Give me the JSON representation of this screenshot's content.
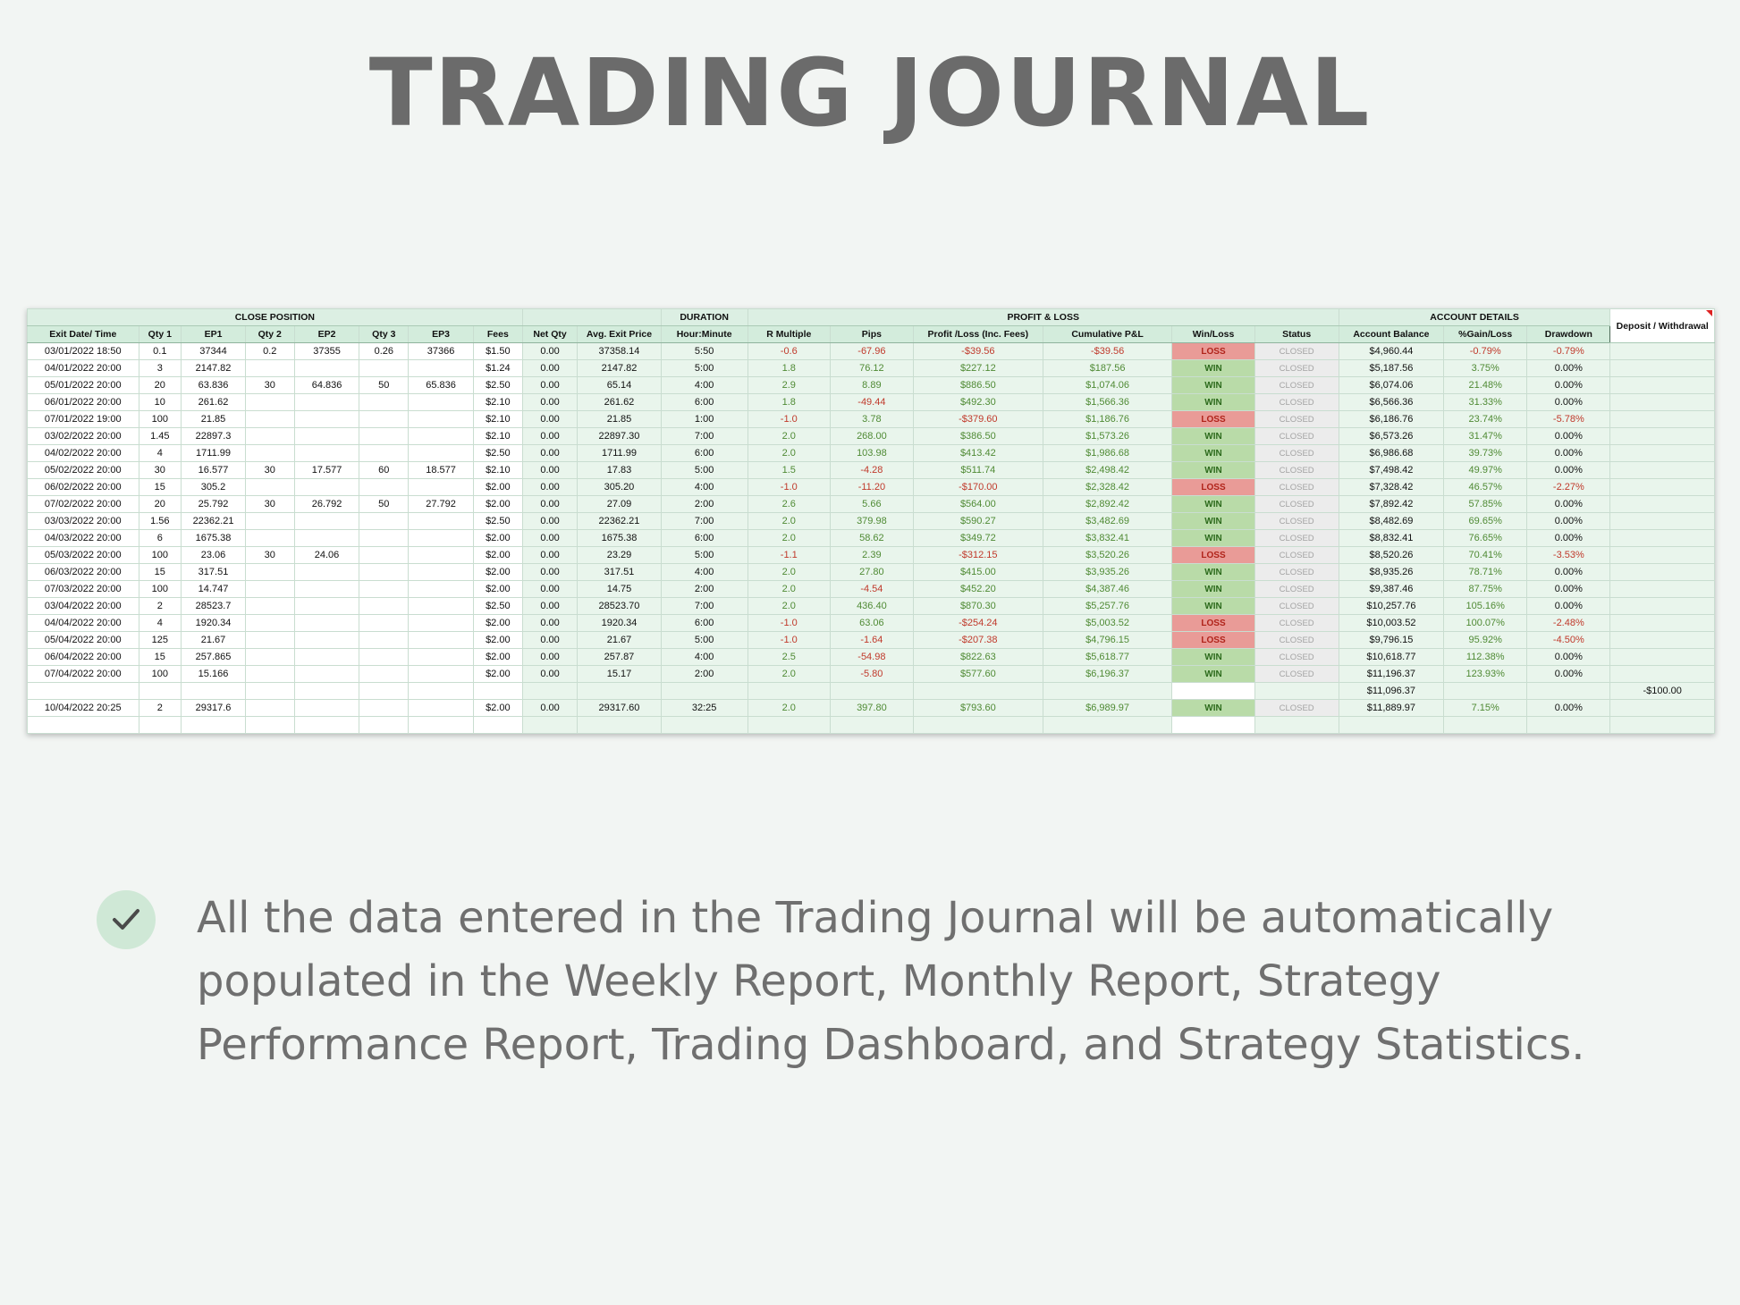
{
  "page": {
    "title": "TRADING JOURNAL",
    "note": "All the data entered in the Trading Journal will be automatically populated in the Weekly Report, Monthly Report, Strategy Performance Report, Trading Dashboard, and Strategy Statistics."
  },
  "colors": {
    "win": "#b9dba8",
    "loss": "#e99b97",
    "header": "#d3ecdc",
    "positive_text": "#4f8a34",
    "negative_text": "#c0392b"
  },
  "sheet": {
    "groups": {
      "close_position": "CLOSE POSITION",
      "duration": "DURATION",
      "profit_loss": "PROFIT & LOSS",
      "account_details": "ACCOUNT DETAILS"
    },
    "columns": [
      "Exit Date/ Time",
      "Qty 1",
      "EP1",
      "Qty 2",
      "EP2",
      "Qty 3",
      "EP3",
      "Fees",
      "Net Qty",
      "Avg. Exit Price",
      "Hour:Minute",
      "R Multiple",
      "Pips",
      "Profit /Loss (Inc. Fees)",
      "Cumulative P&L",
      "Win/Loss",
      "Status",
      "Account Balance",
      "%Gain/Loss",
      "Drawdown",
      "Deposit / Withdrawal"
    ],
    "rows": [
      [
        "03/01/2022 18:50",
        "0.1",
        "37344",
        "0.2",
        "37355",
        "0.26",
        "37366",
        "$1.50",
        "0.00",
        "37358.14",
        "5:50",
        "-0.6",
        "-67.96",
        "-$39.56",
        "-$39.56",
        "LOSS",
        "CLOSED",
        "$4,960.44",
        "-0.79%",
        "-0.79%",
        ""
      ],
      [
        "04/01/2022 20:00",
        "3",
        "2147.82",
        "",
        "",
        "",
        "",
        "$1.24",
        "0.00",
        "2147.82",
        "5:00",
        "1.8",
        "76.12",
        "$227.12",
        "$187.56",
        "WIN",
        "CLOSED",
        "$5,187.56",
        "3.75%",
        "0.00%",
        ""
      ],
      [
        "05/01/2022 20:00",
        "20",
        "63.836",
        "30",
        "64.836",
        "50",
        "65.836",
        "$2.50",
        "0.00",
        "65.14",
        "4:00",
        "2.9",
        "8.89",
        "$886.50",
        "$1,074.06",
        "WIN",
        "CLOSED",
        "$6,074.06",
        "21.48%",
        "0.00%",
        ""
      ],
      [
        "06/01/2022 20:00",
        "10",
        "261.62",
        "",
        "",
        "",
        "",
        "$2.10",
        "0.00",
        "261.62",
        "6:00",
        "1.8",
        "-49.44",
        "$492.30",
        "$1,566.36",
        "WIN",
        "CLOSED",
        "$6,566.36",
        "31.33%",
        "0.00%",
        ""
      ],
      [
        "07/01/2022 19:00",
        "100",
        "21.85",
        "",
        "",
        "",
        "",
        "$2.10",
        "0.00",
        "21.85",
        "1:00",
        "-1.0",
        "3.78",
        "-$379.60",
        "$1,186.76",
        "LOSS",
        "CLOSED",
        "$6,186.76",
        "23.74%",
        "-5.78%",
        ""
      ],
      [
        "03/02/2022 20:00",
        "1.45",
        "22897.3",
        "",
        "",
        "",
        "",
        "$2.10",
        "0.00",
        "22897.30",
        "7:00",
        "2.0",
        "268.00",
        "$386.50",
        "$1,573.26",
        "WIN",
        "CLOSED",
        "$6,573.26",
        "31.47%",
        "0.00%",
        ""
      ],
      [
        "04/02/2022 20:00",
        "4",
        "1711.99",
        "",
        "",
        "",
        "",
        "$2.50",
        "0.00",
        "1711.99",
        "6:00",
        "2.0",
        "103.98",
        "$413.42",
        "$1,986.68",
        "WIN",
        "CLOSED",
        "$6,986.68",
        "39.73%",
        "0.00%",
        ""
      ],
      [
        "05/02/2022 20:00",
        "30",
        "16.577",
        "30",
        "17.577",
        "60",
        "18.577",
        "$2.10",
        "0.00",
        "17.83",
        "5:00",
        "1.5",
        "-4.28",
        "$511.74",
        "$2,498.42",
        "WIN",
        "CLOSED",
        "$7,498.42",
        "49.97%",
        "0.00%",
        ""
      ],
      [
        "06/02/2022 20:00",
        "15",
        "305.2",
        "",
        "",
        "",
        "",
        "$2.00",
        "0.00",
        "305.20",
        "4:00",
        "-1.0",
        "-11.20",
        "-$170.00",
        "$2,328.42",
        "LOSS",
        "CLOSED",
        "$7,328.42",
        "46.57%",
        "-2.27%",
        ""
      ],
      [
        "07/02/2022 20:00",
        "20",
        "25.792",
        "30",
        "26.792",
        "50",
        "27.792",
        "$2.00",
        "0.00",
        "27.09",
        "2:00",
        "2.6",
        "5.66",
        "$564.00",
        "$2,892.42",
        "WIN",
        "CLOSED",
        "$7,892.42",
        "57.85%",
        "0.00%",
        ""
      ],
      [
        "03/03/2022 20:00",
        "1.56",
        "22362.21",
        "",
        "",
        "",
        "",
        "$2.50",
        "0.00",
        "22362.21",
        "7:00",
        "2.0",
        "379.98",
        "$590.27",
        "$3,482.69",
        "WIN",
        "CLOSED",
        "$8,482.69",
        "69.65%",
        "0.00%",
        ""
      ],
      [
        "04/03/2022 20:00",
        "6",
        "1675.38",
        "",
        "",
        "",
        "",
        "$2.00",
        "0.00",
        "1675.38",
        "6:00",
        "2.0",
        "58.62",
        "$349.72",
        "$3,832.41",
        "WIN",
        "CLOSED",
        "$8,832.41",
        "76.65%",
        "0.00%",
        ""
      ],
      [
        "05/03/2022 20:00",
        "100",
        "23.06",
        "30",
        "24.06",
        "",
        "",
        "$2.00",
        "0.00",
        "23.29",
        "5:00",
        "-1.1",
        "2.39",
        "-$312.15",
        "$3,520.26",
        "LOSS",
        "CLOSED",
        "$8,520.26",
        "70.41%",
        "-3.53%",
        ""
      ],
      [
        "06/03/2022 20:00",
        "15",
        "317.51",
        "",
        "",
        "",
        "",
        "$2.00",
        "0.00",
        "317.51",
        "4:00",
        "2.0",
        "27.80",
        "$415.00",
        "$3,935.26",
        "WIN",
        "CLOSED",
        "$8,935.26",
        "78.71%",
        "0.00%",
        ""
      ],
      [
        "07/03/2022 20:00",
        "100",
        "14.747",
        "",
        "",
        "",
        "",
        "$2.00",
        "0.00",
        "14.75",
        "2:00",
        "2.0",
        "-4.54",
        "$452.20",
        "$4,387.46",
        "WIN",
        "CLOSED",
        "$9,387.46",
        "87.75%",
        "0.00%",
        ""
      ],
      [
        "03/04/2022 20:00",
        "2",
        "28523.7",
        "",
        "",
        "",
        "",
        "$2.50",
        "0.00",
        "28523.70",
        "7:00",
        "2.0",
        "436.40",
        "$870.30",
        "$5,257.76",
        "WIN",
        "CLOSED",
        "$10,257.76",
        "105.16%",
        "0.00%",
        ""
      ],
      [
        "04/04/2022 20:00",
        "4",
        "1920.34",
        "",
        "",
        "",
        "",
        "$2.00",
        "0.00",
        "1920.34",
        "6:00",
        "-1.0",
        "63.06",
        "-$254.24",
        "$5,003.52",
        "LOSS",
        "CLOSED",
        "$10,003.52",
        "100.07%",
        "-2.48%",
        ""
      ],
      [
        "05/04/2022 20:00",
        "125",
        "21.67",
        "",
        "",
        "",
        "",
        "$2.00",
        "0.00",
        "21.67",
        "5:00",
        "-1.0",
        "-1.64",
        "-$207.38",
        "$4,796.15",
        "LOSS",
        "CLOSED",
        "$9,796.15",
        "95.92%",
        "-4.50%",
        ""
      ],
      [
        "06/04/2022 20:00",
        "15",
        "257.865",
        "",
        "",
        "",
        "",
        "$2.00",
        "0.00",
        "257.87",
        "4:00",
        "2.5",
        "-54.98",
        "$822.63",
        "$5,618.77",
        "WIN",
        "CLOSED",
        "$10,618.77",
        "112.38%",
        "0.00%",
        ""
      ],
      [
        "07/04/2022 20:00",
        "100",
        "15.166",
        "",
        "",
        "",
        "",
        "$2.00",
        "0.00",
        "15.17",
        "2:00",
        "2.0",
        "-5.80",
        "$577.60",
        "$6,196.37",
        "WIN",
        "CLOSED",
        "$11,196.37",
        "123.93%",
        "0.00%",
        ""
      ],
      [
        "",
        "",
        "",
        "",
        "",
        "",
        "",
        "",
        "",
        "",
        "",
        "",
        "",
        "",
        "",
        "",
        "",
        "$11,096.37",
        "",
        "",
        "-$100.00"
      ],
      [
        "10/04/2022 20:25",
        "2",
        "29317.6",
        "",
        "",
        "",
        "",
        "$2.00",
        "0.00",
        "29317.60",
        "32:25",
        "2.0",
        "397.80",
        "$793.60",
        "$6,989.97",
        "WIN",
        "CLOSED",
        "$11,889.97",
        "7.15%",
        "0.00%",
        ""
      ],
      [
        "",
        "",
        "",
        "",
        "",
        "",
        "",
        "",
        "",
        "",
        "",
        "",
        "",
        "",
        "",
        "",
        "",
        "",
        "",
        "",
        ""
      ]
    ]
  }
}
